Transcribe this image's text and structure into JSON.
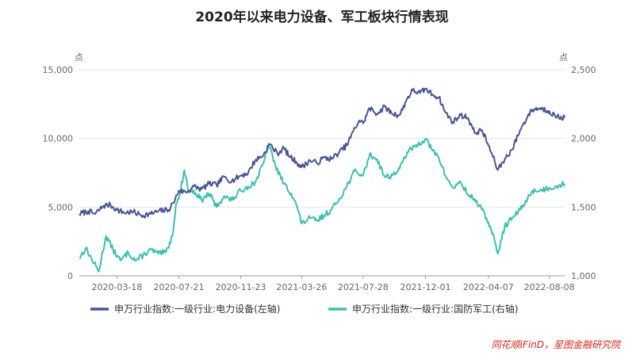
{
  "colors": {
    "left_series": "#4a5592",
    "right_series": "#3ebfb0",
    "grid": "#e6e6e6",
    "axis": "#999999",
    "source": "#d9261c"
  },
  "chart_data": {
    "type": "line",
    "title": "2020年以来电力设备、军工板块行情表现",
    "y_left_unit": "点",
    "y_right_unit": "点",
    "y_left_lim": [
      0,
      15000
    ],
    "y_right_lim": [
      1000,
      2500
    ],
    "y_left_ticks": [
      "0",
      "5,000",
      "10,000",
      "15,000"
    ],
    "y_right_ticks": [
      "1,000",
      "1,500",
      "2,000",
      "2,500"
    ],
    "y_left_tick_values": [
      0,
      5000,
      10000,
      15000
    ],
    "y_right_tick_values": [
      1000,
      1500,
      2000,
      2500
    ],
    "x_range": [
      "2020-01-02",
      "2022-09-08"
    ],
    "x_tick_labels": [
      "2020-03-18",
      "2020-07-21",
      "2020-11-23",
      "2021-03-26",
      "2021-07-28",
      "2021-12-01",
      "2022-04-07",
      "2022-08-08"
    ],
    "x_tick_dates": [
      "2020-03-18",
      "2020-07-21",
      "2020-11-23",
      "2021-03-26",
      "2021-07-28",
      "2021-12-01",
      "2022-04-07",
      "2022-08-08"
    ],
    "series": [
      {
        "name": "申万行业指数:一级行业:电力设备(左轴)",
        "axis": "left",
        "points": [
          [
            "2020-01-02",
            4500
          ],
          [
            "2020-01-20",
            4700
          ],
          [
            "2020-02-03",
            4500
          ],
          [
            "2020-02-20",
            5100
          ],
          [
            "2020-03-05",
            5150
          ],
          [
            "2020-03-18",
            4800
          ],
          [
            "2020-04-01",
            4600
          ],
          [
            "2020-04-20",
            4650
          ],
          [
            "2020-05-06",
            4400
          ],
          [
            "2020-05-25",
            4500
          ],
          [
            "2020-06-10",
            4700
          ],
          [
            "2020-06-30",
            4800
          ],
          [
            "2020-07-10",
            5300
          ],
          [
            "2020-07-21",
            6200
          ],
          [
            "2020-08-05",
            6100
          ],
          [
            "2020-08-20",
            6500
          ],
          [
            "2020-09-05",
            6300
          ],
          [
            "2020-09-20",
            6700
          ],
          [
            "2020-10-05",
            6600
          ],
          [
            "2020-10-20",
            7200
          ],
          [
            "2020-11-05",
            6900
          ],
          [
            "2020-11-23",
            7300
          ],
          [
            "2020-12-08",
            7500
          ],
          [
            "2020-12-22",
            8400
          ],
          [
            "2021-01-08",
            8800
          ],
          [
            "2021-01-20",
            9600
          ],
          [
            "2021-02-05",
            8900
          ],
          [
            "2021-02-18",
            9300
          ],
          [
            "2021-03-01",
            8700
          ],
          [
            "2021-03-15",
            8300
          ],
          [
            "2021-03-26",
            7900
          ],
          [
            "2021-04-12",
            8400
          ],
          [
            "2021-04-26",
            8200
          ],
          [
            "2021-05-10",
            8600
          ],
          [
            "2021-05-25",
            8500
          ],
          [
            "2021-06-10",
            9000
          ],
          [
            "2021-06-25",
            9500
          ],
          [
            "2021-07-08",
            10500
          ],
          [
            "2021-07-20",
            11300
          ],
          [
            "2021-07-28",
            11100
          ],
          [
            "2021-08-10",
            12200
          ],
          [
            "2021-08-25",
            11800
          ],
          [
            "2021-09-10",
            12300
          ],
          [
            "2021-09-25",
            11800
          ],
          [
            "2021-10-10",
            11700
          ],
          [
            "2021-10-25",
            12900
          ],
          [
            "2021-11-05",
            13500
          ],
          [
            "2021-11-20",
            13300
          ],
          [
            "2021-12-01",
            13600
          ],
          [
            "2021-12-15",
            13200
          ],
          [
            "2021-12-28",
            13000
          ],
          [
            "2022-01-10",
            11900
          ],
          [
            "2022-01-25",
            11200
          ],
          [
            "2022-02-10",
            11700
          ],
          [
            "2022-02-25",
            11500
          ],
          [
            "2022-03-10",
            10400
          ],
          [
            "2022-03-25",
            10600
          ],
          [
            "2022-04-07",
            9500
          ],
          [
            "2022-04-20",
            8300
          ],
          [
            "2022-04-26",
            7700
          ],
          [
            "2022-05-10",
            8500
          ],
          [
            "2022-05-25",
            9200
          ],
          [
            "2022-06-10",
            10600
          ],
          [
            "2022-06-25",
            11600
          ],
          [
            "2022-07-05",
            12100
          ],
          [
            "2022-07-20",
            12200
          ],
          [
            "2022-08-08",
            12000
          ],
          [
            "2022-08-20",
            11600
          ],
          [
            "2022-09-08",
            11500
          ]
        ]
      },
      {
        "name": "申万行业指数:一级行业:国防军工(右轴)",
        "axis": "right",
        "points": [
          [
            "2020-01-02",
            1130
          ],
          [
            "2020-01-15",
            1200
          ],
          [
            "2020-02-01",
            1090
          ],
          [
            "2020-02-10",
            1030
          ],
          [
            "2020-02-25",
            1290
          ],
          [
            "2020-03-10",
            1190
          ],
          [
            "2020-03-25",
            1110
          ],
          [
            "2020-04-10",
            1170
          ],
          [
            "2020-04-25",
            1110
          ],
          [
            "2020-05-10",
            1150
          ],
          [
            "2020-05-25",
            1190
          ],
          [
            "2020-06-10",
            1160
          ],
          [
            "2020-06-25",
            1170
          ],
          [
            "2020-07-08",
            1290
          ],
          [
            "2020-07-15",
            1520
          ],
          [
            "2020-07-21",
            1560
          ],
          [
            "2020-08-01",
            1770
          ],
          [
            "2020-08-10",
            1610
          ],
          [
            "2020-08-20",
            1620
          ],
          [
            "2020-09-05",
            1550
          ],
          [
            "2020-09-20",
            1600
          ],
          [
            "2020-10-05",
            1500
          ],
          [
            "2020-10-20",
            1580
          ],
          [
            "2020-11-05",
            1550
          ],
          [
            "2020-11-23",
            1620
          ],
          [
            "2020-12-08",
            1650
          ],
          [
            "2020-12-22",
            1680
          ],
          [
            "2021-01-08",
            1820
          ],
          [
            "2021-01-18",
            1960
          ],
          [
            "2021-02-01",
            1800
          ],
          [
            "2021-02-18",
            1670
          ],
          [
            "2021-03-05",
            1600
          ],
          [
            "2021-03-15",
            1520
          ],
          [
            "2021-03-26",
            1380
          ],
          [
            "2021-04-12",
            1420
          ],
          [
            "2021-04-26",
            1400
          ],
          [
            "2021-05-10",
            1440
          ],
          [
            "2021-05-25",
            1480
          ],
          [
            "2021-06-10",
            1560
          ],
          [
            "2021-06-25",
            1650
          ],
          [
            "2021-07-10",
            1760
          ],
          [
            "2021-07-28",
            1730
          ],
          [
            "2021-08-10",
            1880
          ],
          [
            "2021-08-25",
            1850
          ],
          [
            "2021-09-10",
            1720
          ],
          [
            "2021-09-25",
            1730
          ],
          [
            "2021-10-10",
            1780
          ],
          [
            "2021-10-25",
            1900
          ],
          [
            "2021-11-10",
            1940
          ],
          [
            "2021-12-01",
            2000
          ],
          [
            "2021-12-15",
            1910
          ],
          [
            "2021-12-28",
            1860
          ],
          [
            "2022-01-10",
            1730
          ],
          [
            "2022-01-25",
            1640
          ],
          [
            "2022-02-10",
            1680
          ],
          [
            "2022-02-25",
            1590
          ],
          [
            "2022-03-10",
            1560
          ],
          [
            "2022-03-25",
            1480
          ],
          [
            "2022-04-07",
            1390
          ],
          [
            "2022-04-20",
            1250
          ],
          [
            "2022-04-26",
            1160
          ],
          [
            "2022-05-10",
            1360
          ],
          [
            "2022-05-25",
            1420
          ],
          [
            "2022-06-10",
            1480
          ],
          [
            "2022-06-25",
            1560
          ],
          [
            "2022-07-05",
            1620
          ],
          [
            "2022-07-20",
            1620
          ],
          [
            "2022-08-08",
            1640
          ],
          [
            "2022-08-20",
            1650
          ],
          [
            "2022-09-08",
            1670
          ]
        ]
      }
    ]
  },
  "source": "同花顺iFinD，星图金融研究院"
}
